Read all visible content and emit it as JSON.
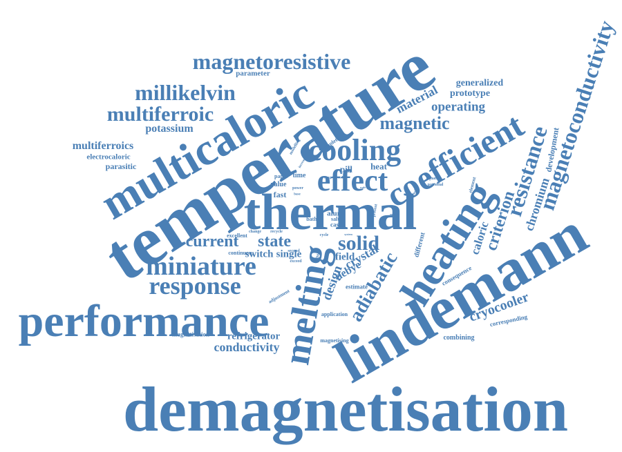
{
  "color": "#4a7fb5",
  "words": {
    "demagnetisation": "demagnetisation",
    "temperature": "temperature",
    "lindemann": "lindemann",
    "performance": "performance",
    "thermal": "thermal",
    "multicaloric": "multicaloric",
    "heating": "heating",
    "coefficient": "coefficient",
    "melting": "melting",
    "effect": "effect",
    "cooling": "cooling",
    "magnetoconductivity": "magnetoconductivity",
    "resistance": "resistance",
    "miniature": "miniature",
    "response": "response",
    "adiabatic": "adiabatic",
    "magnetoresistive": "magnetoresistive",
    "millikelvin": "millikelvin",
    "multiferroic": "multiferroic",
    "current": "current",
    "state": "state",
    "solid": "solid",
    "magnetic": "magnetic",
    "criterion": "criterion",
    "chromium": "chromium",
    "development": "development",
    "caloric": "caloric",
    "design": "design",
    "crystal": "crystal",
    "debye": "debye",
    "cryocooler": "cryocooler",
    "refrigerator": "refrigerator",
    "conductivity": "conductivity",
    "switch": "switch",
    "single": "single",
    "field": "field",
    "material": "material",
    "generalized": "generalized",
    "prototype": "prototype",
    "operating": "operating",
    "potassium": "potassium",
    "multiferroics": "multiferroics",
    "electrocaloric": "electrocaloric",
    "parasitic": "parasitic",
    "parameter": "parameter",
    "pill": "pill",
    "heat": "heat",
    "fast": "fast",
    "value": "value",
    "time": "time",
    "paper": "paper",
    "alum": "alum",
    "salt": "salt",
    "case": "case",
    "bath": "bath",
    "excellent": "excellent",
    "continuous": "continuous",
    "change": "change",
    "recycle": "recycle",
    "second": "second",
    "cycle": "cycle",
    "power": "power",
    "exceed": "exceed",
    "adjustment": "adjustment",
    "estimate": "estimate",
    "application": "application",
    "magnetisation": "magnetisation",
    "magnetising": "magnetising",
    "combining": "combining",
    "corresponding": "corresponding",
    "consequence": "consequence",
    "different": "different",
    "element": "element",
    "equation": "equation",
    "potential": "potential",
    "result": "result",
    "present": "present",
    "report": "report",
    "modelling": "modelling",
    "complete": "complete",
    "group": "group",
    "increase": "increase",
    "speed": "speed",
    "range": "range",
    "system": "system",
    "simple": "simple",
    "base": "base",
    "scale": "scale"
  }
}
